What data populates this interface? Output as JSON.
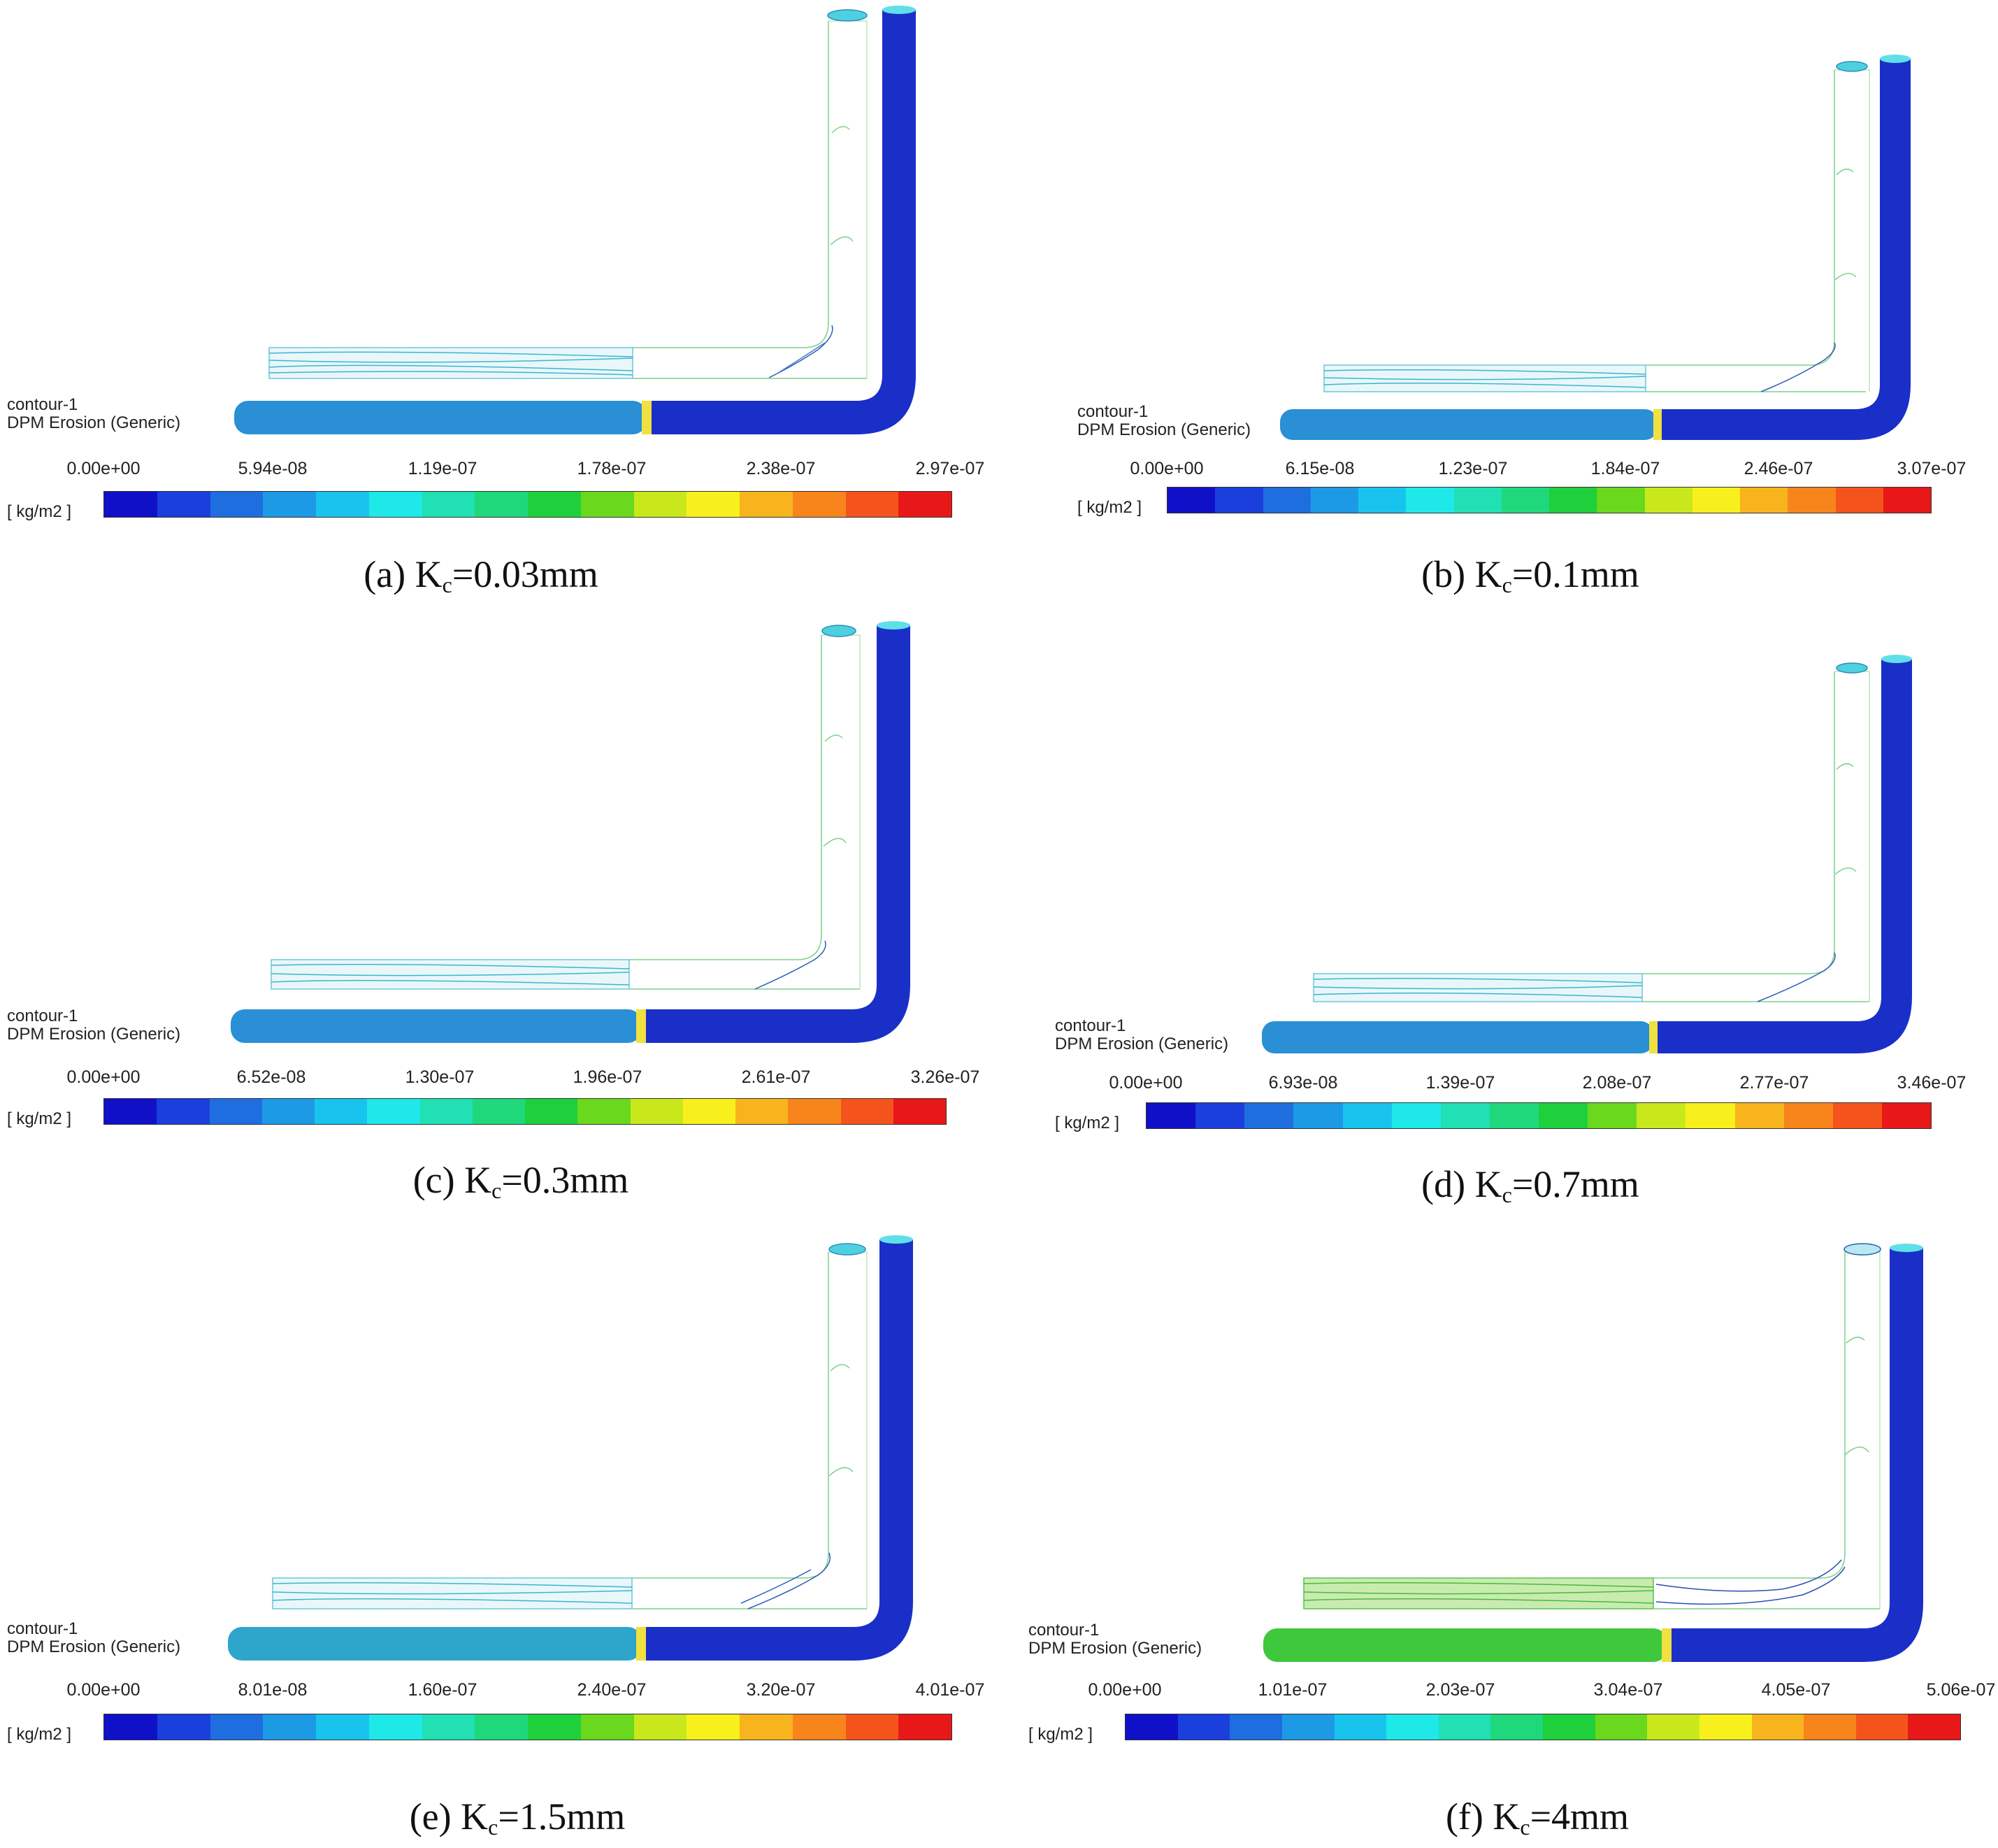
{
  "colorbar_colors": [
    "#1010c8",
    "#1a3fdc",
    "#1f6ee0",
    "#1d9ae6",
    "#18c4ee",
    "#1fe8e8",
    "#20e0b4",
    "#1fd87c",
    "#1dd03c",
    "#6ad81c",
    "#c8e81c",
    "#f8f01c",
    "#f8b41c",
    "#f8841c",
    "#f4541c",
    "#e81818"
  ],
  "panels": [
    {
      "id": "a",
      "contour_name": "contour-1",
      "variable": "DPM Erosion (Generic)",
      "unit": "[ kg/m2 ]",
      "ticks": [
        "0.00e+00",
        "5.94e-08",
        "1.19e-07",
        "1.78e-07",
        "2.38e-07",
        "2.97e-07"
      ],
      "caption_prefix": "(a) K",
      "caption_sub": "c",
      "caption_suffix": "=0.03mm",
      "inlet_color": "#2a8fd4",
      "outlet_color": "#1a2fc8"
    },
    {
      "id": "b",
      "contour_name": "contour-1",
      "variable": "DPM Erosion (Generic)",
      "unit": "[ kg/m2 ]",
      "ticks": [
        "0.00e+00",
        "6.15e-08",
        "1.23e-07",
        "1.84e-07",
        "2.46e-07",
        "3.07e-07"
      ],
      "caption_prefix": "(b) K",
      "caption_sub": "c",
      "caption_suffix": "=0.1mm",
      "inlet_color": "#2a8fd4",
      "outlet_color": "#1a2fc8"
    },
    {
      "id": "c",
      "contour_name": "contour-1",
      "variable": "DPM Erosion (Generic)",
      "unit": "[ kg/m2 ]",
      "ticks": [
        "0.00e+00",
        "6.52e-08",
        "1.30e-07",
        "1.96e-07",
        "2.61e-07",
        "3.26e-07"
      ],
      "caption_prefix": "(c) K",
      "caption_sub": "c",
      "caption_suffix": "=0.3mm",
      "inlet_color": "#2a8fd4",
      "outlet_color": "#1a2fc8"
    },
    {
      "id": "d",
      "contour_name": "contour-1",
      "variable": "DPM Erosion (Generic)",
      "unit": "[ kg/m2 ]",
      "ticks": [
        "0.00e+00",
        "6.93e-08",
        "1.39e-07",
        "2.08e-07",
        "2.77e-07",
        "3.46e-07"
      ],
      "caption_prefix": "(d) K",
      "caption_sub": "c",
      "caption_suffix": "=0.7mm",
      "inlet_color": "#2a8fd4",
      "outlet_color": "#1a2fc8"
    },
    {
      "id": "e",
      "contour_name": "contour-1",
      "variable": "DPM Erosion (Generic)",
      "unit": "[ kg/m2 ]",
      "ticks": [
        "0.00e+00",
        "8.01e-08",
        "1.60e-07",
        "2.40e-07",
        "3.20e-07",
        "4.01e-07"
      ],
      "caption_prefix": "(e) K",
      "caption_sub": "c",
      "caption_suffix": "=1.5mm",
      "inlet_color": "#2ea6cc",
      "outlet_color": "#1a2fc8"
    },
    {
      "id": "f",
      "contour_name": "contour-1",
      "variable": "DPM Erosion (Generic)",
      "unit": "[ kg/m2 ]",
      "ticks": [
        "0.00e+00",
        "1.01e-07",
        "2.03e-07",
        "3.04e-07",
        "4.05e-07",
        "5.06e-07"
      ],
      "caption_prefix": "(f) K",
      "caption_sub": "c",
      "caption_suffix": "=4mm",
      "inlet_color": "#3fc83c",
      "outlet_color": "#1a2fc8"
    }
  ]
}
